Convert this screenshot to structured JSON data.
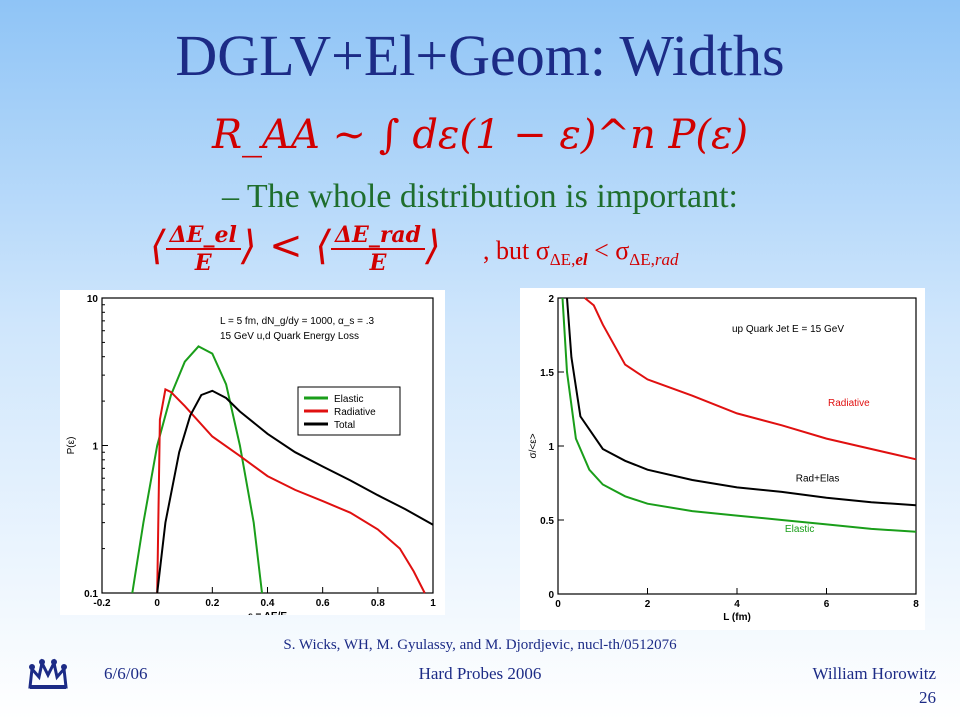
{
  "slide": {
    "title": "DGLV+El+Geom: Widths",
    "formula": "R_AA ~ ∫ dε(1 − ε)^n P(ε)",
    "bullet": "– The whole distribution is important:",
    "ineq": {
      "lhs_num": "ΔE_el",
      "lhs_den": "E",
      "rel": "<",
      "rhs_num": "ΔE_rad",
      "rhs_den": "E",
      "but": ", but σ",
      "sub1": "ΔE,",
      "sub1b": "el",
      "lt": " < σ",
      "sub2": "ΔE,",
      "sub2b": "rad"
    },
    "citation": "S. Wicks, WH, M. Gyulassy, and M. Djordjevic, nucl-th/0512076",
    "footer": {
      "date": "6/6/06",
      "event": "Hard Probes 2006",
      "author": "William Horowitz",
      "page": "26"
    }
  },
  "chart_data": [
    {
      "type": "line",
      "title": "",
      "annotation_lines": [
        "L = 5 fm, dN_g/dy = 1000, α_s = .3",
        "15 GeV u,d Quark Energy Loss"
      ],
      "xlabel": "ε = ΔE/E",
      "ylabel": "P(ε)",
      "xlim": [
        -0.2,
        1
      ],
      "ylim": [
        0.1,
        10
      ],
      "yscale": "log",
      "x_ticks": [
        "-0.2",
        "0",
        "0.2",
        "0.4",
        "0.6",
        "0.8",
        "1"
      ],
      "y_ticks": [
        "0.1",
        "1",
        "10"
      ],
      "legend": "right",
      "series": [
        {
          "name": "Elastic",
          "color": "#1a9e1a",
          "x": [
            -0.09,
            -0.05,
            0,
            0.05,
            0.1,
            0.15,
            0.2,
            0.25,
            0.3,
            0.35,
            0.38
          ],
          "y": [
            0.1,
            0.3,
            1.0,
            2.2,
            3.7,
            4.7,
            4.2,
            2.6,
            1.0,
            0.3,
            0.1
          ]
        },
        {
          "name": "Radiative",
          "color": "#e01010",
          "x": [
            0.0,
            0.01,
            0.03,
            0.05,
            0.1,
            0.2,
            0.3,
            0.4,
            0.5,
            0.6,
            0.7,
            0.8,
            0.88,
            0.93,
            0.97
          ],
          "y": [
            0.1,
            1.5,
            2.4,
            2.3,
            1.85,
            1.15,
            0.85,
            0.62,
            0.5,
            0.42,
            0.35,
            0.27,
            0.2,
            0.14,
            0.1
          ]
        },
        {
          "name": "Total",
          "color": "#000000",
          "x": [
            0.0,
            0.03,
            0.08,
            0.12,
            0.16,
            0.2,
            0.25,
            0.3,
            0.4,
            0.5,
            0.6,
            0.7,
            0.8,
            0.9,
            1.0
          ],
          "y": [
            0.1,
            0.3,
            0.9,
            1.6,
            2.2,
            2.35,
            2.1,
            1.7,
            1.2,
            0.9,
            0.72,
            0.58,
            0.46,
            0.37,
            0.29
          ]
        }
      ]
    },
    {
      "type": "line",
      "title": "",
      "annotation_lines": [
        "up Quark Jet  E = 15 GeV"
      ],
      "xlabel": "L (fm)",
      "ylabel": "σ/<ε>",
      "xlim": [
        0,
        8
      ],
      "ylim": [
        0,
        2
      ],
      "x_ticks": [
        "0",
        "2",
        "4",
        "6",
        "8"
      ],
      "y_ticks": [
        "0",
        "0.5",
        "1",
        "1.5",
        "2"
      ],
      "series": [
        {
          "name": "Radiative",
          "color": "#e01010",
          "x": [
            0.6,
            0.8,
            1,
            1.5,
            2,
            3,
            4,
            5,
            6,
            7,
            8
          ],
          "y": [
            2.0,
            1.95,
            1.82,
            1.55,
            1.45,
            1.34,
            1.22,
            1.14,
            1.05,
            0.98,
            0.91
          ]
        },
        {
          "name": "Rad+Elas",
          "color": "#000000",
          "x": [
            0.2,
            0.3,
            0.5,
            1,
            1.5,
            2,
            3,
            4,
            5,
            6,
            7,
            8
          ],
          "y": [
            2.0,
            1.6,
            1.2,
            0.98,
            0.9,
            0.84,
            0.77,
            0.72,
            0.69,
            0.65,
            0.62,
            0.6
          ]
        },
        {
          "name": "Elastic",
          "color": "#1a9e1a",
          "x": [
            0.1,
            0.2,
            0.4,
            0.7,
            1,
            1.5,
            2,
            3,
            4,
            5,
            6,
            7,
            8
          ],
          "y": [
            2.0,
            1.5,
            1.05,
            0.84,
            0.74,
            0.66,
            0.61,
            0.56,
            0.53,
            0.5,
            0.47,
            0.44,
            0.42
          ]
        }
      ]
    }
  ]
}
